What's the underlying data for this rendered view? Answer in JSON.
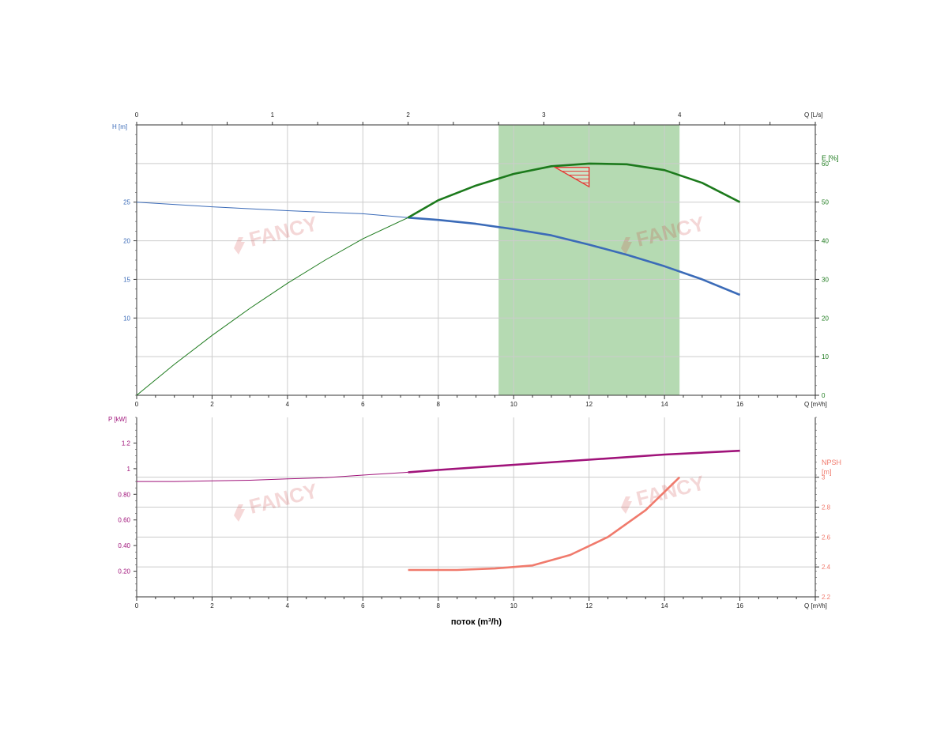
{
  "chart_data": [
    {
      "type": "line",
      "top_axis": {
        "label": "Q [L/s]",
        "range": [
          0,
          5
        ],
        "tick_labels": [
          "0",
          "1",
          "2",
          "3",
          "4"
        ],
        "tick_values": [
          0,
          1,
          2,
          3,
          4
        ]
      },
      "x_axis": {
        "label": "Q [m³/h]",
        "range": [
          0,
          18
        ],
        "tick_labels": [
          "0",
          "2",
          "4",
          "6",
          "8",
          "10",
          "12",
          "14",
          "16"
        ],
        "tick_values": [
          0,
          2,
          4,
          6,
          8,
          10,
          12,
          14,
          16
        ]
      },
      "left_axis": {
        "label": "H [m]",
        "range": [
          0,
          35
        ],
        "tick_labels": [
          "10",
          "15",
          "20",
          "25"
        ],
        "tick_values": [
          10,
          15,
          20,
          25
        ]
      },
      "right_axis": {
        "label": "E [%]",
        "range": [
          0,
          70
        ],
        "tick_labels": [
          "0",
          "10",
          "20",
          "30",
          "40",
          "50",
          "60"
        ],
        "tick_values": [
          0,
          10,
          20,
          30,
          40,
          50,
          60
        ]
      },
      "operating_range": {
        "x": [
          9.6,
          14.4
        ],
        "color": "#b5dab2"
      },
      "best_efficiency_marker": {
        "points": [
          [
            11.1,
            59
          ],
          [
            12,
            59
          ],
          [
            12,
            54
          ]
        ],
        "color": "#e53935"
      },
      "series": [
        {
          "axis": "left",
          "color": "#3b6bb8",
          "points": [
            [
              0,
              25
            ],
            [
              2,
              24.4
            ],
            [
              4,
              23.9
            ],
            [
              6,
              23.5
            ],
            [
              7.2,
              23
            ],
            [
              8,
              22.7
            ],
            [
              9,
              22.2
            ],
            [
              10,
              21.5
            ],
            [
              11,
              20.7
            ],
            [
              12,
              19.5
            ],
            [
              13,
              18.2
            ],
            [
              14,
              16.7
            ],
            [
              15,
              15
            ],
            [
              16,
              13
            ]
          ],
          "bold_from": 7.2
        },
        {
          "axis": "right",
          "color": "#1c7a1c",
          "points": [
            [
              0,
              0
            ],
            [
              1,
              8
            ],
            [
              2,
              15.5
            ],
            [
              3,
              22.5
            ],
            [
              4,
              29
            ],
            [
              5,
              35
            ],
            [
              6,
              40.5
            ],
            [
              7.2,
              46
            ],
            [
              8,
              50.5
            ],
            [
              9,
              54.3
            ],
            [
              10,
              57.3
            ],
            [
              11,
              59.3
            ],
            [
              12,
              60
            ],
            [
              13,
              59.8
            ],
            [
              14,
              58.3
            ],
            [
              15,
              55
            ],
            [
              16,
              50
            ]
          ],
          "bold_from": 7.2
        }
      ]
    },
    {
      "type": "line",
      "x_axis": {
        "label": "Q [m³/h]",
        "range": [
          0,
          18
        ],
        "tick_labels": [
          "0",
          "2",
          "4",
          "6",
          "8",
          "10",
          "12",
          "14",
          "16"
        ],
        "tick_values": [
          0,
          2,
          4,
          6,
          8,
          10,
          12,
          14,
          16
        ]
      },
      "left_axis": {
        "label": "P [kW]",
        "range": [
          0,
          1.4
        ],
        "tick_labels": [
          "0.20",
          "0.40",
          "0.60",
          "0.80",
          "1",
          "1.2"
        ],
        "tick_values": [
          0.2,
          0.4,
          0.6,
          0.8,
          1,
          1.2
        ]
      },
      "right_axis": {
        "label_lines": [
          "NPSH",
          "[m]"
        ],
        "range": [
          2.2,
          3.4
        ],
        "tick_labels": [
          "2.2",
          "2.4",
          "2.6",
          "2.8",
          "3"
        ],
        "tick_values": [
          2.2,
          2.4,
          2.6,
          2.8,
          3
        ]
      },
      "xlabel": "поток (m³/h)",
      "series": [
        {
          "axis": "left",
          "color": "#a0137a",
          "points": [
            [
              0,
              0.9
            ],
            [
              1,
              0.9
            ],
            [
              2,
              0.905
            ],
            [
              3,
              0.91
            ],
            [
              4,
              0.92
            ],
            [
              5,
              0.93
            ],
            [
              6,
              0.95
            ],
            [
              7.2,
              0.972
            ],
            [
              8,
              0.99
            ],
            [
              10,
              1.03
            ],
            [
              12,
              1.07
            ],
            [
              14,
              1.11
            ],
            [
              16,
              1.14
            ]
          ],
          "bold_from": 7.2
        },
        {
          "axis": "right",
          "color": "#f07a6c",
          "points": [
            [
              7.2,
              2.38
            ],
            [
              8.5,
              2.38
            ],
            [
              9.5,
              2.39
            ],
            [
              10.5,
              2.41
            ],
            [
              11.5,
              2.48
            ],
            [
              12.5,
              2.6
            ],
            [
              13.5,
              2.78
            ],
            [
              14.4,
              3
            ]
          ],
          "bold_from": 7.2
        }
      ]
    }
  ],
  "watermark": "FANCY"
}
